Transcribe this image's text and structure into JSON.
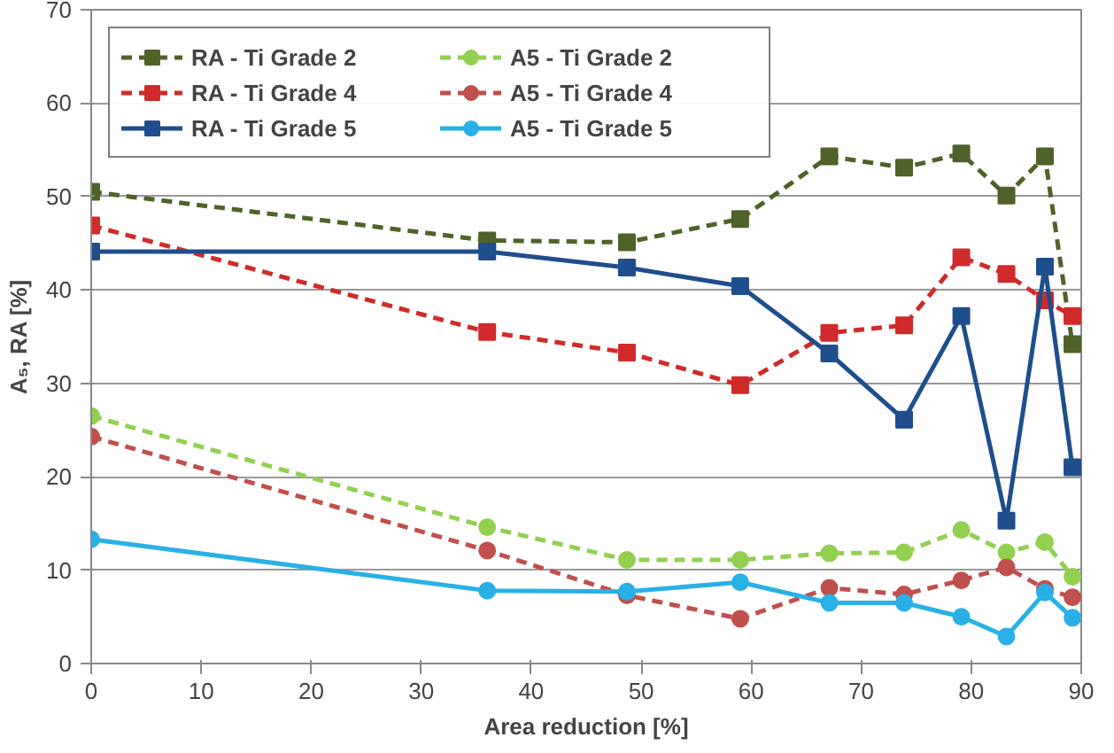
{
  "chart_data": {
    "type": "line",
    "xlabel": "Area reduction [%]",
    "ylabel": "A₅, RA [%]",
    "x": [
      0,
      36,
      48.7,
      59,
      67.1,
      73.9,
      79.1,
      83.2,
      86.7,
      89.2
    ],
    "xlim": [
      0,
      90
    ],
    "xticks": [
      0,
      10,
      20,
      30,
      40,
      50,
      60,
      70,
      80,
      90
    ],
    "ylim": [
      0,
      70
    ],
    "yticks": [
      0,
      10,
      20,
      30,
      40,
      50,
      60,
      70
    ],
    "grid": "y",
    "legend": "top left",
    "series": [
      {
        "name": "RA - Ti Grade 2",
        "color": "#4f6228",
        "marker": "square",
        "line_style": "dashed",
        "values": [
          50.5,
          45.3,
          45.1,
          47.6,
          54.3,
          53.1,
          54.6,
          50.1,
          54.3,
          34.2
        ]
      },
      {
        "name": "A5 - Ti Grade 2",
        "color": "#92d050",
        "marker": "circle",
        "line_style": "dashed",
        "values": [
          26.5,
          14.6,
          11.1,
          11.1,
          11.8,
          11.9,
          14.3,
          11.9,
          13.0,
          9.3
        ]
      },
      {
        "name": "RA - Ti Grade 4",
        "color": "#d02a2a",
        "marker": "square",
        "line_style": "dashed",
        "values": [
          46.9,
          35.5,
          33.3,
          29.8,
          35.4,
          36.2,
          43.5,
          41.7,
          38.9,
          37.2
        ]
      },
      {
        "name": "A5 - Ti Grade 4",
        "color": "#c0504d",
        "marker": "circle",
        "line_style": "dashed",
        "values": [
          24.3,
          12.1,
          7.3,
          4.8,
          8.1,
          7.4,
          8.9,
          10.3,
          8.0,
          7.1
        ]
      },
      {
        "name": "RA - Ti Grade 5",
        "color": "#1f4e8c",
        "marker": "square",
        "line_style": "solid",
        "values": [
          44.1,
          44.1,
          42.4,
          40.4,
          33.2,
          26.1,
          37.2,
          15.3,
          42.5,
          21.0
        ]
      },
      {
        "name": "A5 - Ti Grade 5",
        "color": "#29b0e6",
        "marker": "circle",
        "line_style": "solid",
        "values": [
          13.3,
          7.8,
          7.7,
          8.7,
          6.5,
          6.5,
          5.0,
          2.9,
          7.6,
          4.9
        ]
      }
    ]
  }
}
